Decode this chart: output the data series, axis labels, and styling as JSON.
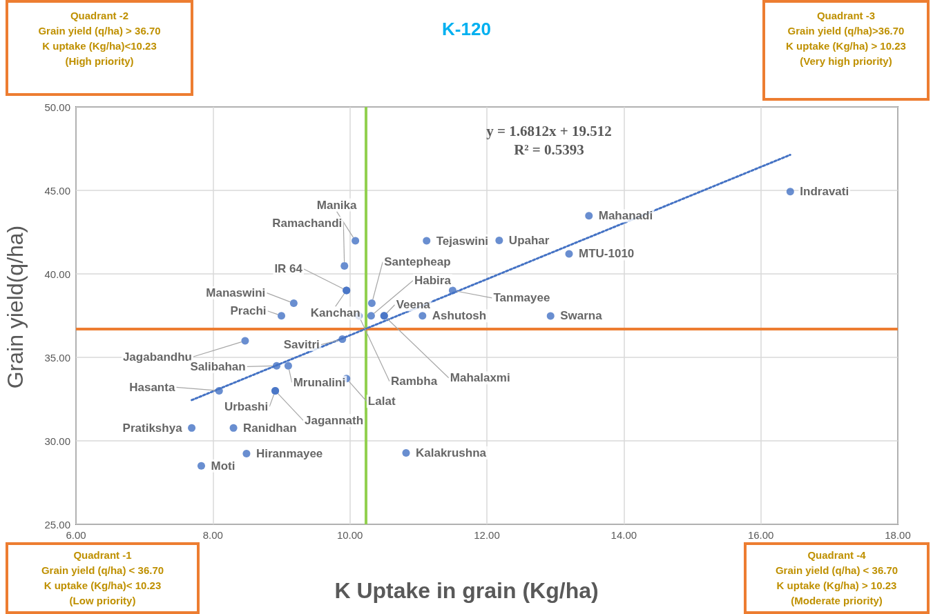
{
  "chart_data": {
    "type": "scatter",
    "title": "K-120",
    "xlabel": "K Uptake in grain (Kg/ha)",
    "ylabel": "Grain yield(q/ha)",
    "xlim": [
      6,
      18
    ],
    "xticks": [
      {
        "value": 6,
        "label": "6.00"
      },
      {
        "value": 8,
        "label": "8.00"
      },
      {
        "value": 10,
        "label": "10.00"
      },
      {
        "value": 12,
        "label": "12.00"
      },
      {
        "value": 14,
        "label": "14.00"
      },
      {
        "value": 16,
        "label": "16.00"
      },
      {
        "value": 18,
        "label": "18.00"
      }
    ],
    "ylim": [
      25,
      50
    ],
    "yticks": [
      {
        "value": 25,
        "label": "25.00"
      },
      {
        "value": 30,
        "label": "30.00"
      },
      {
        "value": 35,
        "label": "35.00"
      },
      {
        "value": 40,
        "label": "40.00"
      },
      {
        "value": 45,
        "label": "45.00"
      },
      {
        "value": 50,
        "label": "50.00"
      }
    ],
    "grid": true,
    "series": [
      {
        "color": "#4472c4",
        "marker": "circle",
        "x": [
          16.43,
          13.49,
          11.12,
          12.18,
          13.2,
          10.08,
          9.92,
          10.32,
          9.95,
          9.18,
          11.5,
          9.0,
          9.95,
          10.31,
          10.5,
          11.06,
          12.93,
          8.47,
          9.89,
          10.13,
          10.5,
          8.93,
          9.1,
          9.95,
          8.09,
          8.91,
          8.91,
          7.69,
          8.3,
          8.49,
          7.83,
          10.82
        ],
        "values": [
          44.93,
          43.48,
          41.98,
          42.0,
          41.2,
          41.98,
          40.48,
          38.24,
          39.01,
          38.24,
          39.01,
          37.49,
          39.01,
          37.49,
          37.49,
          37.49,
          37.48,
          35.99,
          36.09,
          37.49,
          37.49,
          34.49,
          34.49,
          33.73,
          33.0,
          33.0,
          33.0,
          30.77,
          30.77,
          29.24,
          28.5,
          29.28
        ],
        "value_labels": [
          "Indravati",
          "Mahanadi",
          "Tejaswini",
          "Upahar",
          "MTU-1010",
          "Manika",
          "Ramachandi",
          "Santepheap",
          "IR 64",
          "Manaswini",
          "Tanmayee",
          "Prachi",
          "Kanchan",
          "Habira",
          "Veena",
          "Ashutosh",
          "Swarna",
          "Jagabandhu",
          "Savitri",
          "Rambha",
          "Mahalaxmi",
          "Salibahan",
          "Mrunalini",
          "Lalat",
          "Hasanta",
          "Urbashi",
          "Jagannath",
          "Pratikshya",
          "Ranidhan",
          "Hiranmayee",
          "Moti",
          "Kalakrushna"
        ]
      },
      {
        "type": "line",
        "color": "#4472c4",
        "marker": "none",
        "line_style": "dotted",
        "x": [
          7.69,
          16.43
        ],
        "values": [
          32.44,
          47.13
        ]
      }
    ],
    "ref_lines": [
      {
        "axis": "x",
        "value": 10.23,
        "color": "#92d050"
      },
      {
        "axis": "y",
        "value": 36.7,
        "color": "#ed7d31"
      }
    ],
    "annotations": [
      "y = 1.6812x + 19.512",
      "R² = 0.5393",
      "Quadrant -2\nGrain yield (q/ha) > 36.70\nK uptake (Kg/ha)<10.23\n(High priority)",
      "Quadrant -3\nGrain yield (q/ha)>36.70\nK uptake (Kg/ha) > 10.23\n(Very high priority)",
      "Quadrant -1\nGrain yield (q/ha) < 36.70\nK uptake (Kg/ha)< 10.23\n(Low priority)",
      "Quadrant -4\nGrain yield (q/ha) < 36.70\nK uptake (Kg/ha) > 10.23\n(Moderate priority)"
    ]
  }
}
